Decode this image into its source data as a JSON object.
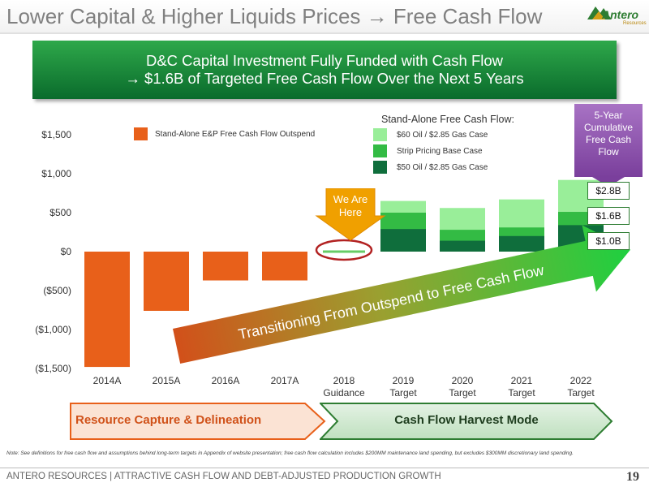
{
  "header": {
    "title": "Lower Capital & Higher Liquids Prices → Free Cash Flow",
    "logo_text": "Antero",
    "logo_sub": "Resources"
  },
  "banner": {
    "line1": "D&C Capital Investment Fully Funded with Cash Flow",
    "line2": "→ $1.6B of Targeted Free Cash Flow Over the Next 5 Years"
  },
  "legend": {
    "outspend_label": "Stand-Alone E&P Free Cash Flow Outspend",
    "fcf_header": "Stand-Alone Free Cash Flow:",
    "case_60": "$60 Oil / $2.85 Gas Case",
    "case_strip": "Strip Pricing Base Case",
    "case_50": "$50 Oil / $2.85 Gas Case"
  },
  "callout": {
    "line1": "5-Year",
    "line2": "Cumulative",
    "line3": "Free Cash",
    "line4": "Flow",
    "val_high": "$2.8B",
    "val_mid": "$1.6B",
    "val_low": "$1.0B"
  },
  "we_are_here": {
    "line1": "We Are",
    "line2": "Here"
  },
  "transition_arrow": "Transitioning From Outspend to Free Cash Flow",
  "phases": {
    "left": "Resource Capture & Delineation",
    "right": "Cash Flow Harvest Mode"
  },
  "note": "Note: See definitions for free cash flow and assumptions behind long-term targets in Appendix of website presentation; free cash flow calculation includes $200MM maintenance land spending, but excludes $300MM discretionary land spending.",
  "footer": {
    "text": "ANTERO RESOURCES | ATTRACTIVE CASH FLOW AND DEBT-ADJUSTED PRODUCTION GROWTH",
    "page": "19"
  },
  "colors": {
    "outspend": "#e8601a",
    "case_60": "#99ee99",
    "case_strip": "#33bb44",
    "case_50": "#0f6e3c",
    "banner": "#1a8a3c",
    "callout": "#8e51b0"
  },
  "chart_data": {
    "type": "bar",
    "categories": [
      [
        "2014A"
      ],
      [
        "2015A"
      ],
      [
        "2016A"
      ],
      [
        "2017A"
      ],
      [
        "2018",
        "Guidance"
      ],
      [
        "2019",
        "Target"
      ],
      [
        "2020",
        "Target"
      ],
      [
        "2021",
        "Target"
      ],
      [
        "2022",
        "Target"
      ]
    ],
    "ylim": [
      -1500,
      1500
    ],
    "yticks": [
      1500,
      1000,
      500,
      0,
      -500,
      -1000,
      -1500
    ],
    "ytick_labels": [
      "$1,500",
      "$1,000",
      "$500",
      "$0",
      "($500)",
      "($1,000)",
      "($1,500)"
    ],
    "series": [
      {
        "name": "Stand-Alone E&P Free Cash Flow Outspend",
        "values": [
          -1480,
          -760,
          -370,
          -370,
          null,
          null,
          null,
          null,
          null
        ]
      },
      {
        "name": "$50 Oil / $2.85 Gas Case",
        "values": [
          null,
          null,
          null,
          null,
          0,
          290,
          140,
          200,
          340
        ]
      },
      {
        "name": "Strip Pricing Base Case",
        "values": [
          null,
          null,
          null,
          null,
          0,
          500,
          280,
          310,
          510
        ]
      },
      {
        "name": "$60 Oil / $2.85 Gas Case",
        "values": [
          null,
          null,
          null,
          null,
          0,
          650,
          560,
          670,
          920
        ]
      }
    ]
  }
}
